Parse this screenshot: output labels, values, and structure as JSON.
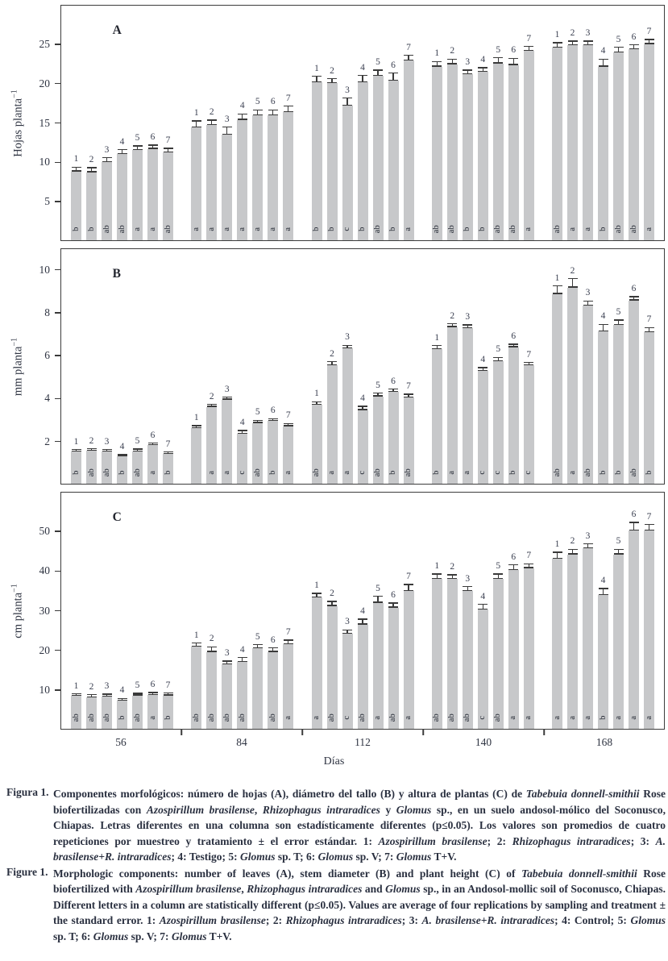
{
  "figure_title": "Figura 1 / Figure 1 — morphologic components bar charts",
  "chart_data": {
    "type": "bar",
    "x_title": "Días",
    "categories": [
      "56",
      "84",
      "112",
      "140",
      "168"
    ],
    "treatment_labels": [
      "1",
      "2",
      "3",
      "4",
      "5",
      "6",
      "7"
    ],
    "bar_color": "#c7c8ca",
    "ink_color": "#3a3a3a",
    "legend": {
      "1": "Azospirillum brasilense",
      "2": "Rhizophagus intraradices",
      "3": "A. brasilense+R. intraradices",
      "4": "Testigo / Control",
      "5": "Glomus sp. T",
      "6": "Glomus sp. V",
      "7": "Glomus T+V"
    },
    "panels": [
      {
        "label": "A",
        "ylabel": "Hojas planta",
        "ylabel_sup": "−1",
        "ylim": [
          0,
          30
        ],
        "yticks": [
          5,
          10,
          15,
          20,
          25
        ],
        "groups": [
          {
            "category": "56",
            "values": [
              8.8,
              8.7,
              10.0,
              11.0,
              11.5,
              11.7,
              11.2
            ],
            "errors": [
              0.5,
              0.5,
              0.5,
              0.5,
              0.5,
              0.4,
              0.5
            ],
            "letters": [
              "b",
              "b",
              "ab",
              "ab",
              "a",
              "a",
              "ab"
            ]
          },
          {
            "category": "84",
            "values": [
              14.4,
              14.7,
              13.5,
              15.4,
              16.0,
              16.0,
              16.4
            ],
            "errors": [
              0.8,
              0.6,
              0.9,
              0.7,
              0.6,
              0.6,
              0.7
            ],
            "letters": [
              "a",
              "a",
              "a",
              "a",
              "a",
              "a",
              "a"
            ]
          },
          {
            "category": "112",
            "values": [
              20.2,
              20.1,
              17.2,
              20.2,
              21.0,
              20.4,
              23.0
            ],
            "errors": [
              0.7,
              0.5,
              0.9,
              0.8,
              0.7,
              0.9,
              0.6
            ],
            "letters": [
              "b",
              "b",
              "c",
              "b",
              "ab",
              "b",
              "a"
            ]
          },
          {
            "category": "140",
            "values": [
              22.2,
              22.5,
              21.2,
              21.5,
              22.6,
              22.4,
              24.2
            ],
            "errors": [
              0.6,
              0.6,
              0.5,
              0.5,
              0.7,
              0.8,
              0.5
            ],
            "letters": [
              "ab",
              "ab",
              "b",
              "b",
              "ab",
              "ab",
              "a"
            ]
          },
          {
            "category": "168",
            "values": [
              24.6,
              24.9,
              24.9,
              22.2,
              24.0,
              24.4,
              25.1
            ],
            "errors": [
              0.6,
              0.5,
              0.5,
              0.9,
              0.6,
              0.5,
              0.5
            ],
            "letters": [
              "ab",
              "a",
              "a",
              "b",
              "ab",
              "ab",
              "a"
            ]
          }
        ]
      },
      {
        "label": "B",
        "ylabel": "mm planta",
        "ylabel_sup": "−1",
        "ylim": [
          0,
          11
        ],
        "yticks": [
          2,
          4,
          6,
          8,
          10
        ],
        "groups": [
          {
            "category": "56",
            "values": [
              1.5,
              1.55,
              1.5,
              1.3,
              1.5,
              1.8,
              1.4
            ],
            "errors": [
              0.08,
              0.07,
              0.08,
              0.06,
              0.1,
              0.08,
              0.07
            ],
            "letters": [
              "b",
              "ab",
              "ab",
              "b",
              "ab",
              "a",
              "b"
            ]
          },
          {
            "category": "84",
            "values": [
              2.6,
              3.6,
              3.95,
              2.35,
              2.85,
              2.95,
              2.7
            ],
            "errors": [
              0.1,
              0.1,
              0.08,
              0.12,
              0.1,
              0.08,
              0.1
            ],
            "letters": [
              "",
              "a",
              "a",
              "c",
              "ab",
              "b",
              "a"
            ]
          },
          {
            "category": "112",
            "values": [
              3.7,
              5.55,
              6.35,
              3.45,
              4.1,
              4.3,
              4.05
            ],
            "errors": [
              0.12,
              0.15,
              0.12,
              0.15,
              0.12,
              0.12,
              0.12
            ],
            "letters": [
              "ab",
              "a",
              "a",
              "c",
              "ab",
              "b",
              "ab"
            ]
          },
          {
            "category": "140",
            "values": [
              6.3,
              7.35,
              7.3,
              5.3,
              5.75,
              6.4,
              5.55
            ],
            "errors": [
              0.15,
              0.12,
              0.12,
              0.12,
              0.15,
              0.12,
              0.12
            ],
            "letters": [
              "b",
              "a",
              "a",
              "c",
              "c",
              "b",
              "c"
            ]
          },
          {
            "category": "168",
            "values": [
              8.9,
              9.2,
              8.35,
              7.15,
              7.45,
              8.6,
              7.1
            ],
            "errors": [
              0.35,
              0.4,
              0.2,
              0.3,
              0.2,
              0.15,
              0.2
            ],
            "letters": [
              "ab",
              "a",
              "ab",
              "b",
              "b",
              "ab",
              "b"
            ]
          }
        ]
      },
      {
        "label": "C",
        "ylabel": "cm planta",
        "ylabel_sup": "−1",
        "ylim": [
          0,
          60
        ],
        "yticks": [
          10,
          20,
          30,
          40,
          50
        ],
        "groups": [
          {
            "category": "56",
            "values": [
              8.3,
              8.0,
              8.2,
              7.2,
              8.5,
              8.6,
              8.5
            ],
            "errors": [
              0.5,
              0.6,
              0.5,
              0.4,
              0.4,
              0.5,
              0.5
            ],
            "letters": [
              "ab",
              "ab",
              "ab",
              "b",
              "ab",
              "a",
              "b"
            ]
          },
          {
            "category": "84",
            "values": [
              20.8,
              19.5,
              16.3,
              17.0,
              20.5,
              19.5,
              21.5
            ],
            "errors": [
              0.9,
              1.2,
              0.8,
              1.0,
              0.8,
              0.9,
              0.9
            ],
            "letters": [
              "ab",
              "ab",
              "ab",
              "ab",
              "",
              "ab",
              "a"
            ]
          },
          {
            "category": "112",
            "values": [
              33.3,
              31.2,
              24.2,
              26.5,
              32.0,
              30.8,
              35.0
            ],
            "errors": [
              1.0,
              1.0,
              0.8,
              1.2,
              1.5,
              1.0,
              1.5
            ],
            "letters": [
              "a",
              "ab",
              "c",
              "ab",
              "a",
              "ab",
              "a"
            ]
          },
          {
            "category": "140",
            "values": [
              38.0,
              38.0,
              35.0,
              30.3,
              38.0,
              40.3,
              40.8
            ],
            "errors": [
              1.2,
              1.0,
              1.0,
              1.2,
              1.2,
              1.2,
              1.0
            ],
            "letters": [
              "ab",
              "ab",
              "ab",
              "c",
              "ab",
              "a",
              "a"
            ]
          },
          {
            "category": "168",
            "values": [
              43.2,
              44.3,
              45.8,
              34.0,
              44.3,
              50.3,
              50.3
            ],
            "errors": [
              1.5,
              1.2,
              1.0,
              1.5,
              1.2,
              2.0,
              1.5
            ],
            "letters": [
              "a",
              "a",
              "a",
              "b",
              "a",
              "a",
              "a"
            ]
          }
        ]
      }
    ]
  },
  "captions": [
    {
      "label": "Figura 1.",
      "segments": [
        {
          "text": "Componentes morfológicos: número de hojas (A), diámetro del tallo (B) y altura de plantas (C) de ",
          "italic": false
        },
        {
          "text": "Tabebuia donnell-smithii",
          "italic": true
        },
        {
          "text": " Rose biofertilizadas con ",
          "italic": false
        },
        {
          "text": "Azospirillum brasilense",
          "italic": true
        },
        {
          "text": ", ",
          "italic": false
        },
        {
          "text": "Rhizophagus intraradices",
          "italic": true
        },
        {
          "text": " y ",
          "italic": false
        },
        {
          "text": "Glomus",
          "italic": true
        },
        {
          "text": " sp., en un suelo andosol-mólico del Soconusco, Chiapas. Letras diferentes en una columna son estadísticamente diferentes (p≤0.05). Los valores son promedios de cuatro repeticiones por muestreo y tratamiento ± el error estándar. 1: ",
          "italic": false
        },
        {
          "text": "Azospirillum brasilense",
          "italic": true
        },
        {
          "text": "; 2: ",
          "italic": false
        },
        {
          "text": "Rhizophagus intraradices",
          "italic": true
        },
        {
          "text": "; 3: ",
          "italic": false
        },
        {
          "text": "A. brasilense+R. intraradices",
          "italic": true
        },
        {
          "text": "; 4: Testigo; 5: ",
          "italic": false
        },
        {
          "text": "Glomus",
          "italic": true
        },
        {
          "text": " sp. T; 6: ",
          "italic": false
        },
        {
          "text": "Glomus",
          "italic": true
        },
        {
          "text": " sp. V; 7: ",
          "italic": false
        },
        {
          "text": "Glomus",
          "italic": true
        },
        {
          "text": " T+V.",
          "italic": false
        }
      ]
    },
    {
      "label": "Figure 1.",
      "segments": [
        {
          "text": "Morphologic components: number of leaves (A), stem diameter (B) and plant height (C) of ",
          "italic": false
        },
        {
          "text": "Tabebuia donnell-smithii",
          "italic": true
        },
        {
          "text": " Rose biofertilized with ",
          "italic": false
        },
        {
          "text": "Azospirillum brasilense",
          "italic": true
        },
        {
          "text": ", ",
          "italic": false
        },
        {
          "text": "Rhizophagus intraradices",
          "italic": true
        },
        {
          "text": " and ",
          "italic": false
        },
        {
          "text": "Glomus",
          "italic": true
        },
        {
          "text": " sp., in an Andosol-mollic soil of Soconusco, Chiapas. Different letters in a column are statistically different (p≤0.05). Values are average of four replications by sampling and treatment ± the standard error. 1: ",
          "italic": false
        },
        {
          "text": "Azospirillum brasilense",
          "italic": true
        },
        {
          "text": "; 2: ",
          "italic": false
        },
        {
          "text": "Rhizophagus intraradices",
          "italic": true
        },
        {
          "text": "; 3: ",
          "italic": false
        },
        {
          "text": "A. brasilense+R. intraradices",
          "italic": true
        },
        {
          "text": "; 4: Control; 5: ",
          "italic": false
        },
        {
          "text": "Glomus",
          "italic": true
        },
        {
          "text": " sp. T; 6: ",
          "italic": false
        },
        {
          "text": "Glomus",
          "italic": true
        },
        {
          "text": " sp. V; 7: ",
          "italic": false
        },
        {
          "text": "Glomus",
          "italic": true
        },
        {
          "text": " T+V.",
          "italic": false
        }
      ]
    }
  ]
}
